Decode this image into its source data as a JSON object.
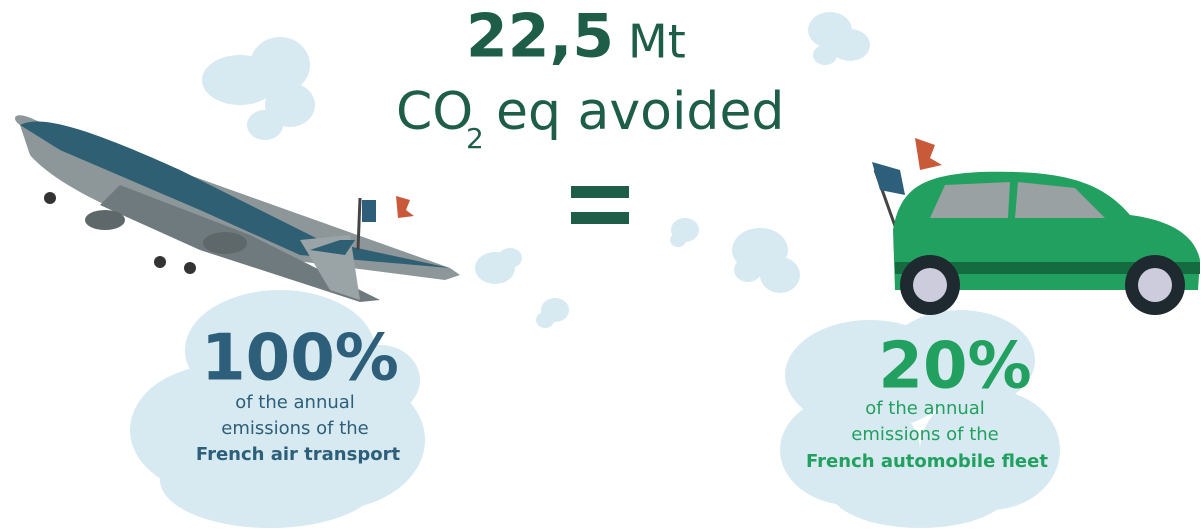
{
  "headline": {
    "amount": "22,5",
    "unit": "Mt",
    "gas": "CO",
    "subscript": "2",
    "suffix": "eq avoided"
  },
  "left": {
    "percent": "100%",
    "lines": [
      "of the annual",
      "emissions of the",
      "French air transport"
    ]
  },
  "right": {
    "percent": "20%",
    "lines": [
      "of the annual",
      "emissions of the",
      "French automobile fleet"
    ]
  }
}
